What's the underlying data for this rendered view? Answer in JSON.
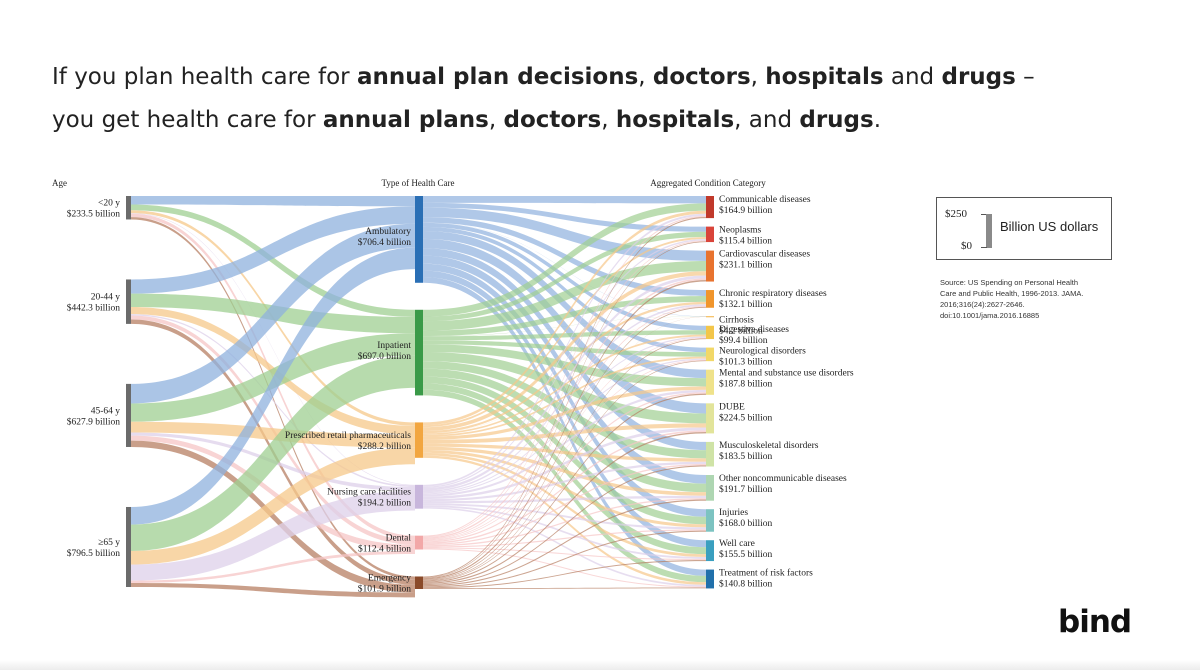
{
  "title": {
    "line1": [
      {
        "text": "If you plan health care for ",
        "bold": false
      },
      {
        "text": "annual plan decisions",
        "bold": true
      },
      {
        "text": ", ",
        "bold": false
      },
      {
        "text": "doctors",
        "bold": true
      },
      {
        "text": ", ",
        "bold": false
      },
      {
        "text": "hospitals",
        "bold": true
      },
      {
        "text": " and ",
        "bold": false
      },
      {
        "text": "drugs",
        "bold": true
      },
      {
        "text": " –",
        "bold": false
      }
    ],
    "line2": [
      {
        "text": "you get health care for ",
        "bold": false
      },
      {
        "text": "annual plans",
        "bold": true
      },
      {
        "text": ", ",
        "bold": false
      },
      {
        "text": "doctors",
        "bold": true
      },
      {
        "text": ", ",
        "bold": false
      },
      {
        "text": "hospitals",
        "bold": true
      },
      {
        "text": ", and ",
        "bold": false
      },
      {
        "text": "drugs",
        "bold": true
      },
      {
        "text": ".",
        "bold": false
      }
    ]
  },
  "diagram": {
    "headers": {
      "age": "Age",
      "type": "Type of Health Care",
      "condition": "Aggregated Condition Category"
    },
    "ages": [
      {
        "id": "a20",
        "name": "<20 y",
        "value_label": "$233.5 billion",
        "value": 233.5
      },
      {
        "id": "a2044",
        "name": "20-44 y",
        "value_label": "$442.3 billion",
        "value": 442.3
      },
      {
        "id": "a4564",
        "name": "45-64 y",
        "value_label": "$627.9 billion",
        "value": 627.9
      },
      {
        "id": "a65",
        "name": "≥65 y",
        "value_label": "$796.5 billion",
        "value": 796.5
      }
    ],
    "types": [
      {
        "id": "amb",
        "name": "Ambulatory",
        "value_label": "$706.4 billion",
        "value": 706.4,
        "color": "#2a6fb5",
        "flow": "#8fb1de"
      },
      {
        "id": "inp",
        "name": "Inpatient",
        "value_label": "$697.0 billion",
        "value": 697.0,
        "color": "#3a9a48",
        "flow": "#9fcf92"
      },
      {
        "id": "rx",
        "name": "Prescribed retail pharmaceuticals",
        "value_label": "$288.2 billion",
        "value": 288.2,
        "color": "#f2a640",
        "flow": "#f6c88a"
      },
      {
        "id": "nur",
        "name": "Nursing care facilities",
        "value_label": "$194.2 billion",
        "value": 194.2,
        "color": "#c8b6dc",
        "flow": "#ddd0ea"
      },
      {
        "id": "den",
        "name": "Dental",
        "value_label": "$112.4 billion",
        "value": 112.4,
        "color": "#f2a8a8",
        "flow": "#f6c6c6"
      },
      {
        "id": "emg",
        "name": "Emergency",
        "value_label": "$101.9 billion",
        "value": 101.9,
        "color": "#8a4a2a",
        "flow": "#b77f63"
      }
    ],
    "conditions": [
      {
        "name": "Communicable diseases",
        "value_label": "$164.9 billion",
        "value": 164.9,
        "color": "#c0392b"
      },
      {
        "name": "Neoplasms",
        "value_label": "$115.4 billion",
        "value": 115.4,
        "color": "#d9443a"
      },
      {
        "name": "Cardiovascular diseases",
        "value_label": "$231.1 billion",
        "value": 231.1,
        "color": "#e8732f"
      },
      {
        "name": "Chronic respiratory diseases",
        "value_label": "$132.1 billion",
        "value": 132.1,
        "color": "#f0952c"
      },
      {
        "name": "Cirrhosis",
        "value_label": "$4.2 billion",
        "value": 4.2,
        "color": "#f2b13c"
      },
      {
        "name": "Digestive diseases",
        "value_label": "$99.4 billion",
        "value": 99.4,
        "color": "#f3c64a"
      },
      {
        "name": "Neurological disorders",
        "value_label": "$101.3 billion",
        "value": 101.3,
        "color": "#f2d868"
      },
      {
        "name": "Mental and substance use disorders",
        "value_label": "$187.8 billion",
        "value": 187.8,
        "color": "#efe28a"
      },
      {
        "name": "DUBE",
        "value_label": "$224.5 billion",
        "value": 224.5,
        "color": "#e2e49a"
      },
      {
        "name": "Musculoskeletal disorders",
        "value_label": "$183.5 billion",
        "value": 183.5,
        "color": "#cfe3a6"
      },
      {
        "name": "Other noncommunicable diseases",
        "value_label": "$191.7 billion",
        "value": 191.7,
        "color": "#aed6b2"
      },
      {
        "name": "Injuries",
        "value_label": "$168.0 billion",
        "value": 168.0,
        "color": "#7cc3c1"
      },
      {
        "name": "Well care",
        "value_label": "$155.5 billion",
        "value": 155.5,
        "color": "#3a9fbf"
      },
      {
        "name": "Treatment of risk factors",
        "value_label": "$140.8 billion",
        "value": 140.8,
        "color": "#2170ab"
      }
    ],
    "age_type_share": {
      "a20": {
        "amb": 0.36,
        "inp": 0.25,
        "rx": 0.12,
        "nur": 0.02,
        "den": 0.15,
        "emg": 0.1
      },
      "a2044": {
        "amb": 0.32,
        "inp": 0.3,
        "rx": 0.16,
        "nur": 0.03,
        "den": 0.09,
        "emg": 0.1
      },
      "a4564": {
        "amb": 0.31,
        "inp": 0.29,
        "rx": 0.17,
        "nur": 0.05,
        "den": 0.08,
        "emg": 0.1
      },
      "a65": {
        "amb": 0.22,
        "inp": 0.33,
        "rx": 0.17,
        "nur": 0.2,
        "den": 0.03,
        "emg": 0.05
      }
    }
  },
  "legend": {
    "max_label": "$250",
    "min_label": "$0",
    "caption": "Billion US dollars"
  },
  "source": {
    "lines": [
      "Source:  US Spending on Personal Health",
      "Care and Public Health, 1996-2013. JAMA.",
      "2016;316(24):2627-2646.",
      "doi:10.1001/jama.2016.16885"
    ]
  },
  "brand": "bind"
}
